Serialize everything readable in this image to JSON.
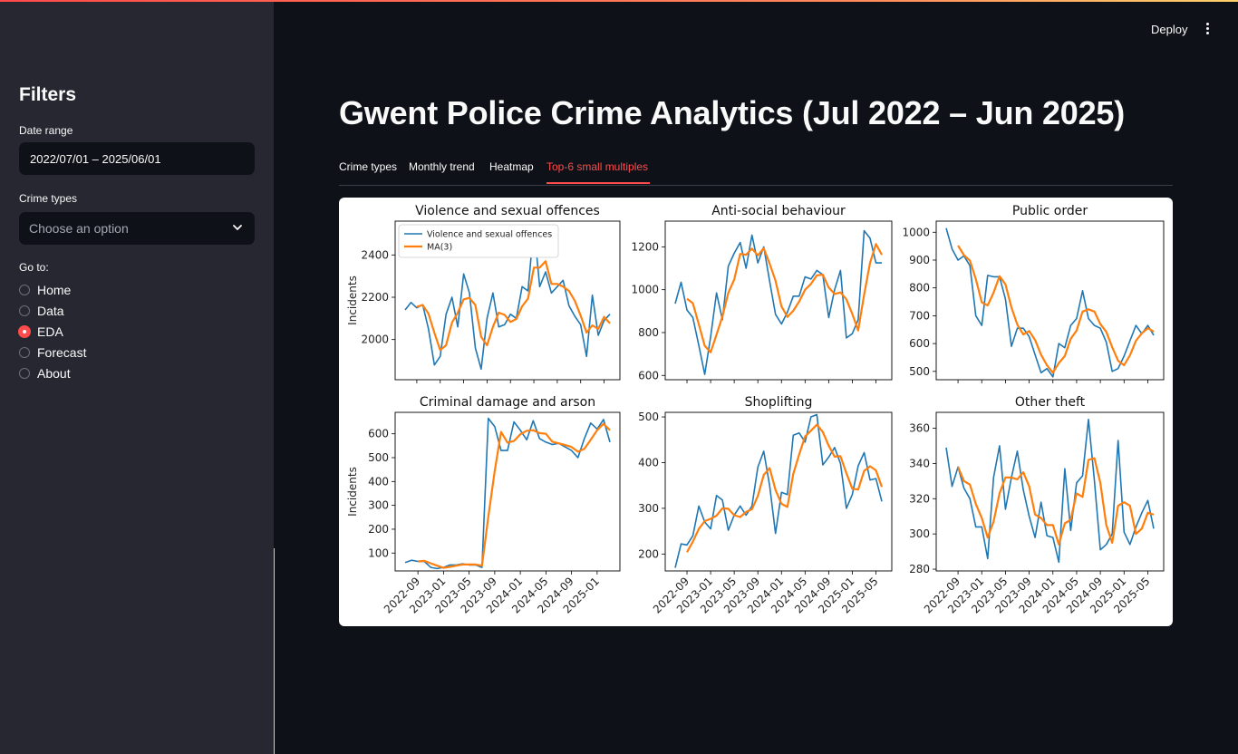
{
  "header": {
    "deploy_label": "Deploy",
    "menu_icon": "more-vertical-icon"
  },
  "sidebar": {
    "title": "Filters",
    "date_range_label": "Date range",
    "date_range_value": "2022/07/01 – 2025/06/01",
    "crime_types_label": "Crime types",
    "crime_types_placeholder": "Choose an option",
    "goto_label": "Go to:",
    "nav": [
      {
        "label": "Home",
        "selected": false
      },
      {
        "label": "Data",
        "selected": false
      },
      {
        "label": "EDA",
        "selected": true
      },
      {
        "label": "Forecast",
        "selected": false
      },
      {
        "label": "About",
        "selected": false
      }
    ]
  },
  "main": {
    "title": "Gwent Police Crime Analytics (Jul 2022 – Jun 2025)",
    "tabs": [
      {
        "label": "Crime types",
        "active": false
      },
      {
        "label": "Monthly trend",
        "active": false
      },
      {
        "label": "Heatmap",
        "active": false
      },
      {
        "label": "Top-6 small multiples",
        "active": true
      }
    ]
  },
  "colors": {
    "accent": "#ff4b4b",
    "series": "#1f77b4",
    "ma": "#ff7f0e"
  },
  "chart_data": [
    {
      "type": "line",
      "title": "Violence and sexual offences",
      "ylabel": "Incidents",
      "ylim": [
        1810,
        2560
      ],
      "yticks": [
        2000,
        2200,
        2400
      ],
      "legend": [
        "Violence and sexual offences",
        "MA(3)"
      ],
      "legend_position": "top-left",
      "series": [
        {
          "name": "Violence and sexual offences",
          "values": [
            2140,
            2175,
            2150,
            2165,
            2050,
            1880,
            1920,
            2120,
            2200,
            2060,
            2310,
            2220,
            1960,
            1860,
            2100,
            2220,
            2060,
            2070,
            2120,
            2100,
            2250,
            2230,
            2540,
            2250,
            2320,
            2220,
            2250,
            2280,
            2160,
            2110,
            2070,
            1920,
            2210,
            2020,
            2090,
            2120
          ]
        },
        {
          "name": "MA(3)",
          "values": [
            null,
            null,
            2155,
            2163,
            2122,
            2032,
            1950,
            1973,
            2080,
            2127,
            2190,
            2197,
            2163,
            2013,
            1973,
            2060,
            2127,
            2117,
            2083,
            2097,
            2157,
            2193,
            2340,
            2340,
            2370,
            2263,
            2263,
            2250,
            2230,
            2183,
            2113,
            2033,
            2067,
            2050,
            2107,
            2077
          ]
        }
      ]
    },
    {
      "type": "line",
      "title": "Anti-social behaviour",
      "ylabel": "",
      "ylim": [
        580,
        1320
      ],
      "yticks": [
        600,
        800,
        1000,
        1200
      ],
      "series": [
        {
          "name": "",
          "values": [
            935,
            1035,
            905,
            870,
            740,
            605,
            780,
            985,
            860,
            1110,
            1170,
            1220,
            1100,
            1255,
            1125,
            1200,
            1040,
            885,
            840,
            895,
            970,
            970,
            1060,
            1050,
            1090,
            1070,
            870,
            1000,
            1090,
            775,
            795,
            860,
            1275,
            1240,
            1125,
            1125
          ]
        },
        {
          "name": "",
          "values": [
            null,
            null,
            958,
            937,
            838,
            738,
            708,
            790,
            875,
            985,
            1047,
            1167,
            1163,
            1192,
            1160,
            1193,
            1122,
            1042,
            922,
            873,
            902,
            945,
            1000,
            1027,
            1067,
            1070,
            1010,
            980,
            987,
            955,
            887,
            810,
            977,
            1125,
            1213,
            1163
          ]
        }
      ]
    },
    {
      "type": "line",
      "title": "Public order",
      "ylabel": "",
      "ylim": [
        470,
        1040
      ],
      "yticks": [
        500,
        600,
        700,
        800,
        900,
        1000
      ],
      "series": [
        {
          "name": "",
          "values": [
            1015,
            940,
            900,
            915,
            880,
            700,
            665,
            845,
            840,
            840,
            760,
            590,
            655,
            655,
            625,
            560,
            495,
            510,
            480,
            600,
            585,
            665,
            690,
            790,
            690,
            665,
            655,
            605,
            500,
            510,
            555,
            610,
            665,
            635,
            665,
            630
          ]
        },
        {
          "name": "",
          "values": [
            null,
            null,
            952,
            918,
            898,
            832,
            748,
            737,
            783,
            842,
            813,
            730,
            668,
            633,
            645,
            613,
            560,
            522,
            495,
            530,
            555,
            617,
            647,
            715,
            723,
            715,
            670,
            642,
            587,
            538,
            522,
            558,
            610,
            637,
            655,
            643
          ]
        }
      ]
    },
    {
      "type": "line",
      "title": "Criminal damage and arson",
      "ylabel": "Incidents",
      "ylim": [
        25,
        690
      ],
      "yticks": [
        100,
        200,
        300,
        400,
        500,
        600
      ],
      "xticks": [
        "2022-09",
        "2023-01",
        "2023-05",
        "2023-09",
        "2024-01",
        "2024-05",
        "2024-09",
        "2025-01",
        "2025-05"
      ],
      "series": [
        {
          "name": "",
          "values": [
            60,
            70,
            65,
            65,
            40,
            35,
            40,
            50,
            50,
            55,
            50,
            50,
            40,
            665,
            630,
            530,
            530,
            650,
            615,
            575,
            655,
            580,
            565,
            555,
            560,
            545,
            530,
            500,
            580,
            645,
            620,
            660,
            565
          ]
        },
        {
          "name": "",
          "values": [
            null,
            null,
            65,
            67,
            57,
            47,
            38,
            42,
            47,
            52,
            52,
            52,
            47,
            252,
            445,
            608,
            563,
            570,
            598,
            613,
            615,
            603,
            600,
            567,
            560,
            553,
            545,
            525,
            537,
            575,
            615,
            642,
            615
          ]
        }
      ]
    },
    {
      "type": "line",
      "title": "Shoplifting",
      "ylabel": "",
      "ylim": [
        163,
        510
      ],
      "yticks": [
        200,
        300,
        400,
        500
      ],
      "xticks": [
        "2022-09",
        "2023-01",
        "2023-05",
        "2023-09",
        "2024-01",
        "2024-05",
        "2024-09",
        "2025-01",
        "2025-05"
      ],
      "series": [
        {
          "name": "",
          "values": [
            170,
            222,
            220,
            240,
            305,
            270,
            255,
            328,
            318,
            252,
            285,
            305,
            285,
            305,
            390,
            425,
            350,
            245,
            335,
            330,
            460,
            465,
            445,
            500,
            505,
            395,
            412,
            433,
            398,
            300,
            330,
            393,
            422,
            362,
            365,
            315
          ]
        },
        {
          "name": "",
          "values": [
            null,
            null,
            204,
            227,
            255,
            272,
            277,
            284,
            300,
            299,
            285,
            281,
            292,
            298,
            327,
            373,
            388,
            340,
            310,
            303,
            375,
            418,
            457,
            470,
            483,
            467,
            437,
            413,
            414,
            377,
            343,
            341,
            382,
            392,
            383,
            347
          ]
        }
      ]
    },
    {
      "type": "line",
      "title": "Other theft",
      "ylabel": "",
      "ylim": [
        279,
        369
      ],
      "yticks": [
        280,
        300,
        320,
        340,
        360
      ],
      "xticks": [
        "2022-09",
        "2023-01",
        "2023-05",
        "2023-09",
        "2024-01",
        "2024-05",
        "2024-09",
        "2025-01",
        "2025-05"
      ],
      "series": [
        {
          "name": "",
          "values": [
            349,
            327,
            338,
            326,
            320,
            304,
            304,
            286,
            332,
            350,
            314,
            332,
            347,
            325,
            310,
            298,
            318,
            299,
            298,
            284,
            337,
            302,
            329,
            333,
            365,
            330,
            291,
            294,
            300,
            353,
            301,
            294,
            304,
            312,
            319,
            303
          ]
        },
        {
          "name": "",
          "values": [
            null,
            null,
            338,
            330,
            328,
            317,
            309,
            298,
            307,
            323,
            332,
            332,
            331,
            335,
            327,
            311,
            309,
            305,
            305,
            294,
            306,
            308,
            323,
            321,
            342,
            343,
            329,
            305,
            295,
            316,
            318,
            316,
            300,
            303,
            312,
            311
          ]
        }
      ]
    }
  ]
}
